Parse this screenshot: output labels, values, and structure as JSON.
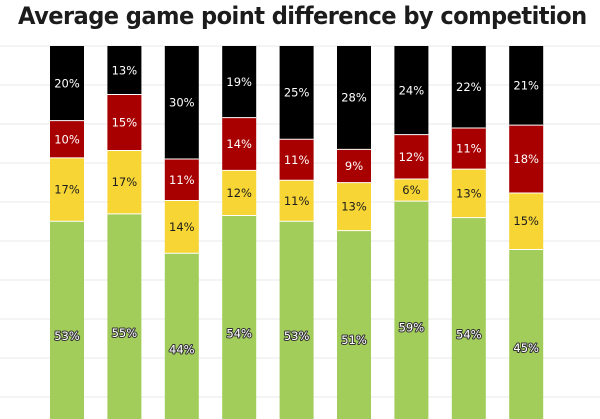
{
  "chart_data": {
    "type": "bar",
    "stacked": true,
    "title": "Average game point difference by competition",
    "xlabel": "",
    "ylabel": "",
    "ylim": [
      0,
      100
    ],
    "grid": true,
    "categories": [
      "",
      "",
      "",
      "",
      "",
      "",
      "",
      "",
      ""
    ],
    "series": [
      {
        "color": "#a2cd5a",
        "values": [
          53,
          55,
          44,
          54,
          53,
          51,
          59,
          54,
          45
        ]
      },
      {
        "color": "#f6d535",
        "values": [
          17,
          17,
          14,
          12,
          11,
          13,
          6,
          13,
          15
        ]
      },
      {
        "color": "#a80000",
        "values": [
          10,
          15,
          11,
          14,
          11,
          9,
          12,
          11,
          18
        ]
      },
      {
        "color": "#000000",
        "values": [
          20,
          13,
          30,
          19,
          25,
          28,
          24,
          22,
          21
        ]
      }
    ]
  }
}
